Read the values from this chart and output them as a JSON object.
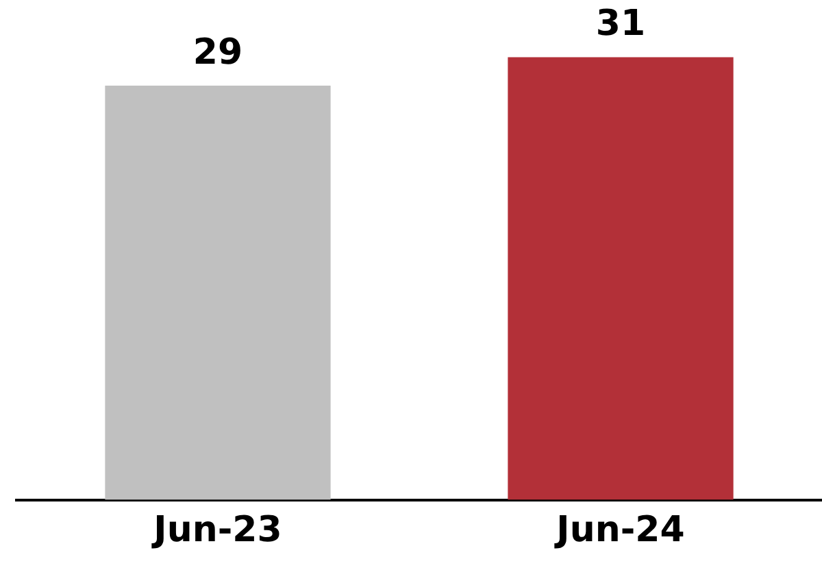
{
  "chart_data": {
    "type": "bar",
    "categories": [
      "Jun-23",
      "Jun-24"
    ],
    "values": [
      29,
      31
    ],
    "colors": [
      "#c0c0c0",
      "#b33038"
    ],
    "data_labels": true,
    "grid": false,
    "legend": false
  }
}
